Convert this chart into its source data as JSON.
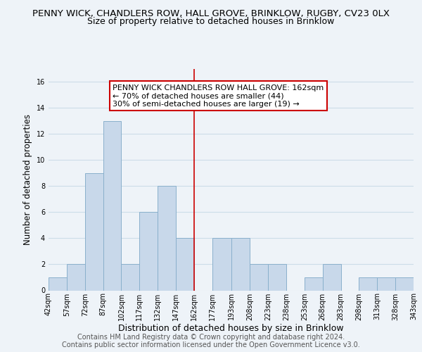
{
  "title": "PENNY WICK, CHANDLERS ROW, HALL GROVE, BRINKLOW, RUGBY, CV23 0LX",
  "subtitle": "Size of property relative to detached houses in Brinklow",
  "xlabel": "Distribution of detached houses by size in Brinklow",
  "ylabel": "Number of detached properties",
  "bar_values": [
    1,
    2,
    9,
    13,
    2,
    6,
    8,
    4,
    0,
    4,
    4,
    2,
    2,
    0,
    1,
    2,
    0,
    1,
    1,
    1
  ],
  "bin_edges": [
    42,
    57,
    72,
    87,
    102,
    117,
    132,
    147,
    162,
    177,
    193,
    208,
    223,
    238,
    253,
    268,
    283,
    298,
    313,
    328,
    343
  ],
  "tick_labels": [
    "42sqm",
    "57sqm",
    "72sqm",
    "87sqm",
    "102sqm",
    "117sqm",
    "132sqm",
    "147sqm",
    "162sqm",
    "177sqm",
    "193sqm",
    "208sqm",
    "223sqm",
    "238sqm",
    "253sqm",
    "268sqm",
    "283sqm",
    "298sqm",
    "313sqm",
    "328sqm",
    "343sqm"
  ],
  "bar_color": "#c8d8ea",
  "bar_edge_color": "#8ab0cc",
  "bar_linewidth": 0.7,
  "ref_line_x": 162,
  "ref_line_color": "#cc0000",
  "ylim": [
    0,
    17
  ],
  "yticks": [
    0,
    2,
    4,
    6,
    8,
    10,
    12,
    14,
    16
  ],
  "grid_color": "#ccdde8",
  "annotation_line1": "PENNY WICK CHANDLERS ROW HALL GROVE: 162sqm",
  "annotation_line2": "← 70% of detached houses are smaller (44)",
  "annotation_line3": "30% of semi-detached houses are larger (19) →",
  "annotation_box_edge": "#cc0000",
  "footer_line1": "Contains HM Land Registry data © Crown copyright and database right 2024.",
  "footer_line2": "Contains public sector information licensed under the Open Government Licence v3.0.",
  "background_color": "#eef3f8",
  "title_fontsize": 9.5,
  "subtitle_fontsize": 9,
  "xlabel_fontsize": 9,
  "ylabel_fontsize": 8.5,
  "tick_fontsize": 7,
  "footer_fontsize": 7,
  "annotation_fontsize": 8
}
